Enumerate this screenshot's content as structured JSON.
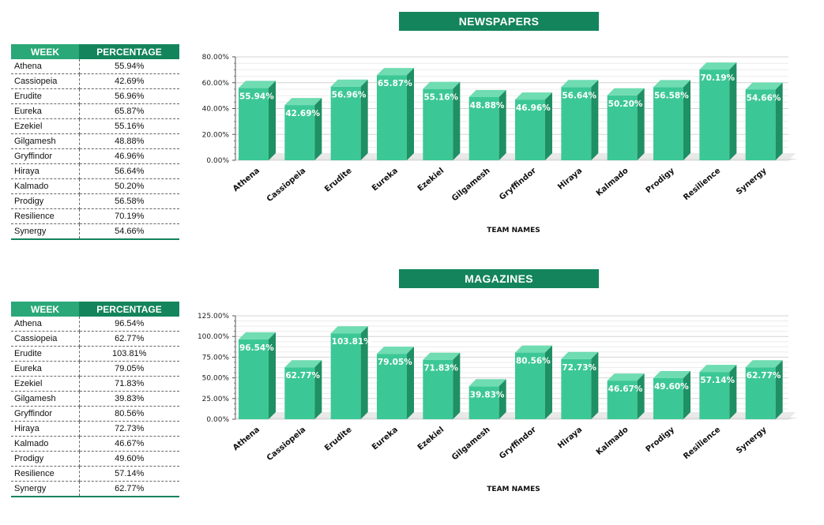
{
  "colors": {
    "header_dark": "#13845b",
    "header_light": "#2aa877",
    "bar_front": "#3cc896",
    "bar_top": "#6fdcb2",
    "bar_side": "#1f8f64"
  },
  "sections": [
    {
      "title": "NEWSPAPERS",
      "table": {
        "headers": [
          "WEEK",
          "PERCENTAGE"
        ],
        "rows": [
          [
            "Athena",
            "55.94%"
          ],
          [
            "Cassiopeia",
            "42.69%"
          ],
          [
            "Erudite",
            "56.96%"
          ],
          [
            "Eureka",
            "65.87%"
          ],
          [
            "Ezekiel",
            "55.16%"
          ],
          [
            "Gilgamesh",
            "48.88%"
          ],
          [
            "Gryffindor",
            "46.96%"
          ],
          [
            "Hiraya",
            "56.64%"
          ],
          [
            "Kalmado",
            "50.20%"
          ],
          [
            "Prodigy",
            "56.58%"
          ],
          [
            "Resilience",
            "70.19%"
          ],
          [
            "Synergy",
            "54.66%"
          ]
        ]
      }
    },
    {
      "title": "MAGAZINES",
      "table": {
        "headers": [
          "WEEK",
          "PERCENTAGE"
        ],
        "rows": [
          [
            "Athena",
            "96.54%"
          ],
          [
            "Cassiopeia",
            "62.77%"
          ],
          [
            "Erudite",
            "103.81%"
          ],
          [
            "Eureka",
            "79.05%"
          ],
          [
            "Ezekiel",
            "71.83%"
          ],
          [
            "Gilgamesh",
            "39.83%"
          ],
          [
            "Gryffindor",
            "80.56%"
          ],
          [
            "Hiraya",
            "72.73%"
          ],
          [
            "Kalmado",
            "46.67%"
          ],
          [
            "Prodigy",
            "49.60%"
          ],
          [
            "Resilience",
            "57.14%"
          ],
          [
            "Synergy",
            "62.77%"
          ]
        ]
      }
    }
  ],
  "chart_data": [
    {
      "type": "bar",
      "title": "NEWSPAPERS",
      "xlabel": "TEAM NAMES",
      "ylabel": "",
      "ylim": [
        0,
        80
      ],
      "yticks": [
        "0.00%",
        "20.00%",
        "40.00%",
        "60.00%",
        "80.00%"
      ],
      "categories": [
        "Athena",
        "Cassiopeia",
        "Erudite",
        "Eureka",
        "Ezekiel",
        "Gilgamesh",
        "Gryffindor",
        "Hiraya",
        "Kalmado",
        "Prodigy",
        "Resilience",
        "Synergy"
      ],
      "values": [
        55.94,
        42.69,
        56.96,
        65.87,
        55.16,
        48.88,
        46.96,
        56.64,
        50.2,
        56.58,
        70.19,
        54.66
      ],
      "data_labels": [
        "55.94%",
        "42.69%",
        "56.96%",
        "65.87%",
        "55.16%",
        "48.88%",
        "46.96%",
        "56.64%",
        "50.20%",
        "56.58%",
        "70.19%",
        "54.66%"
      ],
      "grid": true,
      "legend": "none"
    },
    {
      "type": "bar",
      "title": "MAGAZINES",
      "xlabel": "TEAM NAMES",
      "ylabel": "",
      "ylim": [
        0,
        125
      ],
      "yticks": [
        "0.00%",
        "25.00%",
        "50.00%",
        "75.00%",
        "100.00%",
        "125.00%"
      ],
      "categories": [
        "Athena",
        "Cassiopeia",
        "Erudite",
        "Eureka",
        "Ezekiel",
        "Gilgamesh",
        "Gryffindor",
        "Hiraya",
        "Kalmado",
        "Prodigy",
        "Resilience",
        "Synergy"
      ],
      "values": [
        96.54,
        62.77,
        103.81,
        79.05,
        71.83,
        39.83,
        80.56,
        72.73,
        46.67,
        49.6,
        57.14,
        62.77
      ],
      "data_labels": [
        "96.54%",
        "62.77%",
        "103.81%",
        "79.05%",
        "71.83%",
        "39.83%",
        "80.56%",
        "72.73%",
        "46.67%",
        "49.60%",
        "57.14%",
        "62.77%"
      ],
      "grid": true,
      "legend": "none"
    }
  ]
}
